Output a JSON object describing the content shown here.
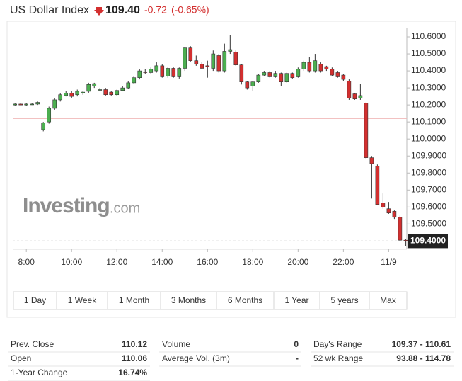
{
  "header": {
    "title": "US Dollar Index",
    "price": "109.40",
    "change": "-0.72",
    "change_pct": "(-0.65%)"
  },
  "chart_data": {
    "type": "candlestick",
    "x": [
      7.5,
      7.75,
      8,
      8.25,
      8.5,
      8.75,
      9,
      9.25,
      9.5,
      9.75,
      10,
      10.25,
      10.5,
      10.75,
      11,
      11.25,
      11.5,
      11.75,
      12,
      12.25,
      12.5,
      12.75,
      13,
      13.25,
      13.5,
      13.75,
      14,
      14.25,
      14.5,
      14.75,
      15,
      15.25,
      15.5,
      15.75,
      16,
      16.25,
      16.5,
      16.75,
      17,
      17.25,
      17.5,
      17.75,
      18,
      18.25,
      18.5,
      18.75,
      19,
      19.25,
      19.5,
      19.75,
      20,
      20.25,
      20.5,
      20.75,
      21,
      21.25,
      21.5,
      21.75,
      22,
      22.25,
      22.5,
      22.75,
      23,
      23.25,
      23.5,
      23.75,
      24,
      24.25,
      24.5,
      24.75
    ],
    "open": [
      110.2,
      110.205,
      110.2,
      110.205,
      110.205,
      110.055,
      110.1,
      110.18,
      110.23,
      110.255,
      110.27,
      110.26,
      110.27,
      110.28,
      110.31,
      110.29,
      110.29,
      110.275,
      110.26,
      110.285,
      110.3,
      110.33,
      110.36,
      110.395,
      110.39,
      110.4,
      110.43,
      110.37,
      110.415,
      110.365,
      110.415,
      110.535,
      110.46,
      110.44,
      110.43,
      110.415,
      110.49,
      110.4,
      110.515,
      110.51,
      110.435,
      110.335,
      110.31,
      110.335,
      110.375,
      110.39,
      110.365,
      110.385,
      110.335,
      110.385,
      110.365,
      110.41,
      110.45,
      110.4,
      110.44,
      110.425,
      110.41,
      110.39,
      110.375,
      110.34,
      110.265,
      110.24,
      110.21,
      109.89,
      109.84,
      109.625,
      109.59,
      109.575,
      109.54,
      109.405
    ],
    "high": [
      110.21,
      110.21,
      110.21,
      110.21,
      110.22,
      110.1,
      110.19,
      110.24,
      110.27,
      110.28,
      110.28,
      110.29,
      110.28,
      110.33,
      110.33,
      110.3,
      110.3,
      110.28,
      110.29,
      110.31,
      110.34,
      110.37,
      110.41,
      110.41,
      110.42,
      110.45,
      110.44,
      110.42,
      110.42,
      110.42,
      110.54,
      110.545,
      110.49,
      110.45,
      110.46,
      110.52,
      110.5,
      110.56,
      110.61,
      110.52,
      110.44,
      110.34,
      110.34,
      110.38,
      110.4,
      110.4,
      110.4,
      110.39,
      110.39,
      110.39,
      110.42,
      110.46,
      110.48,
      110.5,
      110.45,
      110.43,
      110.42,
      110.4,
      110.38,
      110.35,
      110.27,
      110.325,
      110.215,
      109.9,
      109.85,
      109.68,
      109.63,
      109.58,
      109.55,
      109.41
    ],
    "low": [
      110.195,
      110.2,
      110.195,
      110.2,
      110.2,
      110.045,
      110.09,
      110.17,
      110.22,
      110.25,
      110.24,
      110.25,
      110.26,
      110.27,
      110.3,
      110.28,
      110.255,
      110.255,
      110.255,
      110.28,
      110.295,
      110.325,
      110.35,
      110.38,
      110.38,
      110.39,
      110.36,
      110.36,
      110.36,
      110.355,
      110.4,
      110.455,
      110.43,
      110.41,
      110.36,
      110.4,
      110.39,
      110.39,
      110.5,
      110.43,
      110.32,
      110.29,
      110.28,
      110.33,
      110.37,
      110.36,
      110.36,
      110.31,
      110.33,
      110.355,
      110.36,
      110.4,
      110.39,
      110.39,
      110.39,
      110.4,
      110.37,
      110.36,
      110.34,
      110.23,
      110.23,
      110.23,
      109.88,
      109.65,
      109.61,
      109.59,
      109.56,
      109.53,
      109.4,
      109.37
    ],
    "close": [
      110.205,
      110.2,
      110.205,
      110.205,
      110.215,
      110.095,
      110.18,
      110.23,
      110.26,
      110.27,
      110.25,
      110.28,
      110.275,
      110.32,
      110.325,
      110.29,
      110.26,
      110.26,
      110.285,
      110.3,
      110.33,
      110.36,
      110.4,
      110.39,
      110.41,
      110.43,
      110.365,
      110.415,
      110.365,
      110.415,
      110.535,
      110.46,
      110.44,
      110.415,
      110.425,
      110.5,
      110.4,
      110.515,
      110.525,
      110.435,
      110.335,
      110.3,
      110.335,
      110.375,
      110.39,
      110.365,
      110.385,
      110.335,
      110.385,
      110.36,
      110.41,
      110.45,
      110.4,
      110.46,
      110.4,
      110.41,
      110.375,
      110.365,
      110.35,
      110.24,
      110.235,
      110.255,
      109.89,
      109.855,
      109.615,
      109.6,
      109.565,
      109.54,
      109.405,
      109.4
    ],
    "up_color": "#4caf50",
    "down_color": "#d32f2f",
    "xlim": [
      7.4,
      24.8
    ],
    "xticks": [
      {
        "value": 8,
        "label": "8:00"
      },
      {
        "value": 10,
        "label": "10:00"
      },
      {
        "value": 12,
        "label": "12:00"
      },
      {
        "value": 14,
        "label": "14:00"
      },
      {
        "value": 16,
        "label": "16:00"
      },
      {
        "value": 18,
        "label": "18:00"
      },
      {
        "value": 20,
        "label": "20:00"
      },
      {
        "value": 22,
        "label": "22:00"
      },
      {
        "value": 24,
        "label": "11/9"
      }
    ],
    "ylim": [
      109.36,
      110.65
    ],
    "yticks": [
      {
        "value": 110.6,
        "label": "110.6000"
      },
      {
        "value": 110.5,
        "label": "110.5000"
      },
      {
        "value": 110.4,
        "label": "110.4000"
      },
      {
        "value": 110.3,
        "label": "110.3000"
      },
      {
        "value": 110.2,
        "label": "110.2000"
      },
      {
        "value": 110.1,
        "label": "110.1000"
      },
      {
        "value": 110,
        "label": "110.0000"
      },
      {
        "value": 109.9,
        "label": "109.9000"
      },
      {
        "value": 109.8,
        "label": "109.8000"
      },
      {
        "value": 109.7,
        "label": "109.7000"
      },
      {
        "value": 109.6,
        "label": "109.6000"
      },
      {
        "value": 109.5,
        "label": "109.5000"
      }
    ],
    "reference_line": 110.12,
    "last_price": {
      "value": 109.4,
      "label": "109.4000"
    },
    "watermark": [
      "Investing",
      ".com"
    ]
  },
  "tabs": [
    "1 Day",
    "1 Week",
    "1 Month",
    "3 Months",
    "6 Months",
    "1 Year",
    "5 years",
    "Max"
  ],
  "stats": [
    [
      {
        "label": "Prev. Close",
        "value": "110.12"
      },
      {
        "label": "Open",
        "value": "110.06"
      },
      {
        "label": "1-Year Change",
        "value": "16.74%"
      }
    ],
    [
      {
        "label": "Volume",
        "value": "0"
      },
      {
        "label": "Average Vol. (3m)",
        "value": "-"
      }
    ],
    [
      {
        "label": "Day's Range",
        "value": "109.37 - 110.61"
      },
      {
        "label": "52 wk Range",
        "value": "93.88 - 114.78"
      }
    ]
  ]
}
